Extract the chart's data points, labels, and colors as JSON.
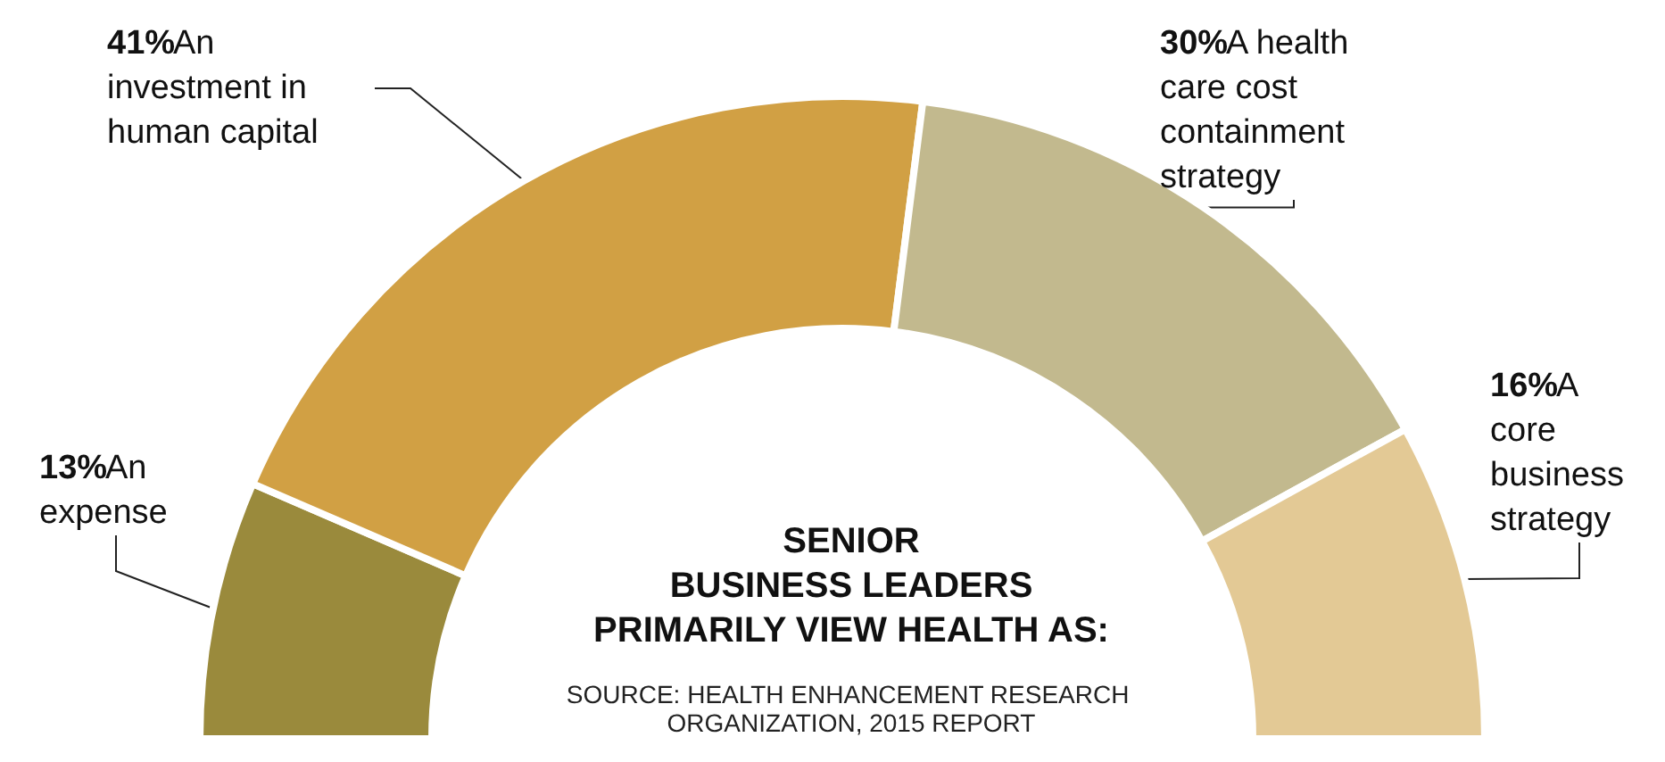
{
  "chart_data": {
    "type": "donut",
    "title": "SENIOR\nBUSINESS LEADERS\nPRIMARILY VIEW HEALTH AS:",
    "categories": [
      "An expense",
      "An investment in human capital",
      "A health care cost containment strategy",
      "A core business strategy"
    ],
    "values": [
      13,
      41,
      30,
      16
    ],
    "value_labels": [
      "13%",
      "41%",
      "30%",
      "16%"
    ],
    "colors": [
      "#9a8a3c",
      "#d1a044",
      "#c2b98e",
      "#e3c995"
    ],
    "annotations": [
      "SOURCE: HEALTH ENHANCEMENT RESEARCH ORGANIZATION, 2015 REPORT"
    ]
  }
}
